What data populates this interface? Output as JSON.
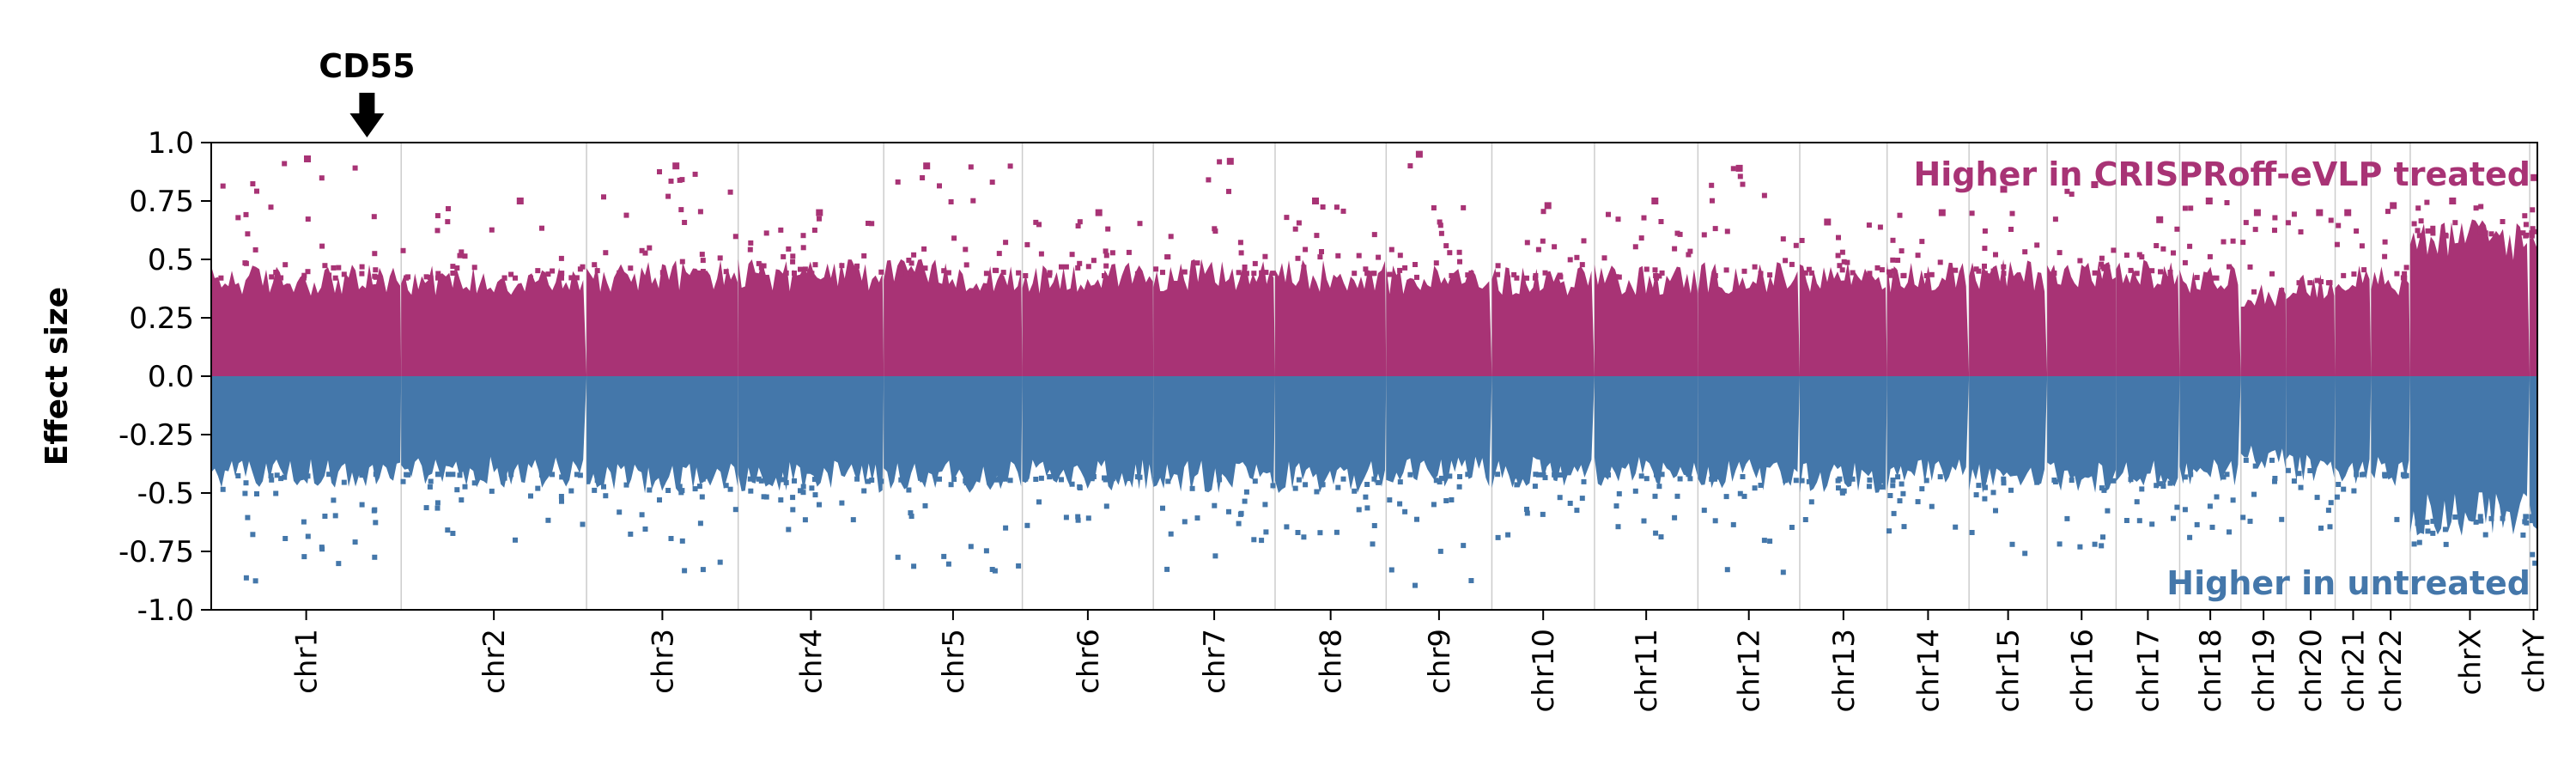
{
  "chart_data": {
    "type": "scatter",
    "subtype": "manhattan",
    "ylabel": "Effect size",
    "ylim": [
      -1.0,
      1.0
    ],
    "yticks": [
      "1.0",
      "0.75",
      "0.5",
      "0.25",
      "0.0",
      "-0.25",
      "-0.5",
      "-0.75",
      "-1.0"
    ],
    "ytick_values": [
      1.0,
      0.75,
      0.5,
      0.25,
      0.0,
      -0.25,
      -0.5,
      -0.75,
      -1.0
    ],
    "grid": "vertical lines between chromosomes",
    "chromosomes": [
      {
        "name": "chr1",
        "length": 248,
        "envelope": 0.42,
        "top": 0.93
      },
      {
        "name": "chr2",
        "length": 242,
        "envelope": 0.42,
        "top": 0.75
      },
      {
        "name": "chr3",
        "length": 198,
        "envelope": 0.44,
        "top": 0.9
      },
      {
        "name": "chr4",
        "length": 190,
        "envelope": 0.44,
        "top": 0.7
      },
      {
        "name": "chr5",
        "length": 181,
        "envelope": 0.44,
        "top": 0.9
      },
      {
        "name": "chr6",
        "length": 171,
        "envelope": 0.43,
        "top": 0.7
      },
      {
        "name": "chr7",
        "length": 159,
        "envelope": 0.44,
        "top": 0.92
      },
      {
        "name": "chr8",
        "length": 145,
        "envelope": 0.44,
        "top": 0.75
      },
      {
        "name": "chr9",
        "length": 138,
        "envelope": 0.42,
        "top": 0.95
      },
      {
        "name": "chr10",
        "length": 134,
        "envelope": 0.42,
        "top": 0.73
      },
      {
        "name": "chr11",
        "length": 135,
        "envelope": 0.42,
        "top": 0.75
      },
      {
        "name": "chr12",
        "length": 133,
        "envelope": 0.43,
        "top": 0.89
      },
      {
        "name": "chr13",
        "length": 114,
        "envelope": 0.44,
        "top": 0.66
      },
      {
        "name": "chr14",
        "length": 107,
        "envelope": 0.43,
        "top": 0.7
      },
      {
        "name": "chr15",
        "length": 102,
        "envelope": 0.44,
        "top": 0.8
      },
      {
        "name": "chr16",
        "length": 90,
        "envelope": 0.44,
        "top": 0.82
      },
      {
        "name": "chr17",
        "length": 83,
        "envelope": 0.44,
        "top": 0.67
      },
      {
        "name": "chr18",
        "length": 80,
        "envelope": 0.42,
        "top": 0.75
      },
      {
        "name": "chr19",
        "length": 59,
        "envelope": 0.36,
        "top": 0.7
      },
      {
        "name": "chr20",
        "length": 64,
        "envelope": 0.4,
        "top": 0.7
      },
      {
        "name": "chr21",
        "length": 47,
        "envelope": 0.42,
        "top": 0.7
      },
      {
        "name": "chr22",
        "length": 51,
        "envelope": 0.42,
        "top": 0.73
      },
      {
        "name": "chrX",
        "length": 156,
        "envelope": 0.6,
        "top": 0.75
      },
      {
        "name": "chrY",
        "length": 10,
        "envelope": 0.6,
        "top": 0.85
      }
    ],
    "positive_label": "Higher in CRISPRoff-eVLP treated",
    "negative_label": "Higher in untreated",
    "highlight": {
      "label": "CD55",
      "chromosome": "chr1",
      "position_fraction": 0.82
    },
    "colors": {
      "positive": "#a83375",
      "negative": "#4477aa",
      "axis": "#000000",
      "separator": "#cccccc"
    }
  }
}
